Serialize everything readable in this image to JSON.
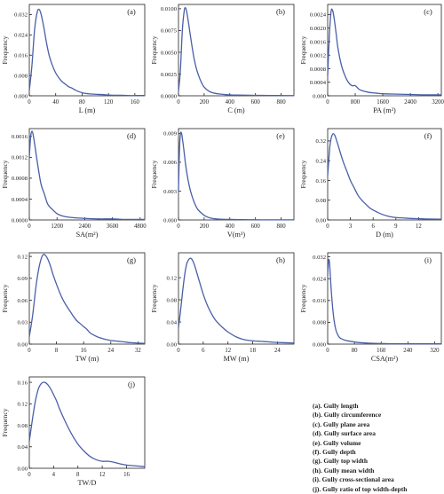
{
  "chart_data": [
    {
      "type": "line",
      "panel": "(a)",
      "xlabel": "L (m)",
      "ylabel": "Frequency",
      "xlim": [
        0,
        175
      ],
      "ylim": [
        0,
        0.036
      ],
      "xticks": [
        {
          "v": 0,
          "l": "0"
        },
        {
          "v": 40,
          "l": "40"
        },
        {
          "v": 80,
          "l": "80"
        },
        {
          "v": 120,
          "l": "120"
        },
        {
          "v": 160,
          "l": "160"
        }
      ],
      "yticks": [
        {
          "v": 0,
          "l": "0.000"
        },
        {
          "v": 0.008,
          "l": "0.008"
        },
        {
          "v": 0.016,
          "l": "0.016"
        },
        {
          "v": 0.024,
          "l": "0.024"
        },
        {
          "v": 0.032,
          "l": "0.032"
        }
      ],
      "x": [
        0,
        4,
        8,
        12,
        15,
        18,
        22,
        26,
        30,
        35,
        40,
        45,
        50,
        55,
        60,
        65,
        70,
        80,
        90,
        100,
        110,
        120,
        130,
        140,
        150,
        160,
        175
      ],
      "y": [
        0.002,
        0.012,
        0.026,
        0.033,
        0.034,
        0.032,
        0.027,
        0.021,
        0.016,
        0.012,
        0.009,
        0.007,
        0.0055,
        0.0045,
        0.0035,
        0.003,
        0.0022,
        0.0012,
        0.0008,
        0.0006,
        0.0005,
        0.0003,
        0.0002,
        0.0002,
        0.0001,
        0.0001,
        0.0001
      ]
    },
    {
      "type": "line",
      "panel": "(b)",
      "xlabel": "C (m)",
      "ylabel": "Frequency",
      "xlim": [
        0,
        900
      ],
      "ylim": [
        0,
        0.0105
      ],
      "xticks": [
        {
          "v": 0,
          "l": "0"
        },
        {
          "v": 200,
          "l": "200"
        },
        {
          "v": 400,
          "l": "400"
        },
        {
          "v": 600,
          "l": "600"
        },
        {
          "v": 800,
          "l": "800"
        }
      ],
      "yticks": [
        {
          "v": 0,
          "l": "0.0000"
        },
        {
          "v": 0.0025,
          "l": "0.0025"
        },
        {
          "v": 0.005,
          "l": "0.0050"
        },
        {
          "v": 0.0075,
          "l": "0.0075"
        },
        {
          "v": 0.01,
          "l": "0.0100"
        }
      ],
      "x": [
        0,
        15,
        30,
        45,
        55,
        65,
        80,
        100,
        120,
        140,
        160,
        180,
        200,
        240,
        280,
        320,
        400,
        500,
        600,
        700,
        800,
        900
      ],
      "y": [
        0.0005,
        0.003,
        0.0075,
        0.0098,
        0.0101,
        0.0096,
        0.0082,
        0.0062,
        0.0044,
        0.0031,
        0.0022,
        0.0015,
        0.001,
        0.0005,
        0.0003,
        0.0002,
        0.0001,
        8e-05,
        5e-05,
        4e-05,
        3e-05,
        2e-05
      ]
    },
    {
      "type": "line",
      "panel": "(c)",
      "xlabel": "PA (m²)",
      "ylabel": "Frequency",
      "xlim": [
        0,
        3300
      ],
      "ylim": [
        0,
        0.0027
      ],
      "xticks": [
        {
          "v": 0,
          "l": "0"
        },
        {
          "v": 800,
          "l": "800"
        },
        {
          "v": 1600,
          "l": "1600"
        },
        {
          "v": 2400,
          "l": "2400"
        },
        {
          "v": 3200,
          "l": "3200"
        }
      ],
      "yticks": [
        {
          "v": 0,
          "l": "0.000"
        },
        {
          "v": 0.0004,
          "l": "0.0004"
        },
        {
          "v": 0.0008,
          "l": "0.0008"
        },
        {
          "v": 0.0012,
          "l": "0.0012"
        },
        {
          "v": 0.0016,
          "l": "0.0016"
        },
        {
          "v": 0.002,
          "l": "0.0020"
        },
        {
          "v": 0.0024,
          "l": "0.0024"
        }
      ],
      "x": [
        0,
        50,
        100,
        150,
        200,
        250,
        300,
        400,
        500,
        600,
        700,
        800,
        900,
        1000,
        1200,
        1400,
        1600,
        2000,
        2400,
        2800,
        3300
      ],
      "y": [
        0.0006,
        0.0018,
        0.0025,
        0.0025,
        0.0022,
        0.0018,
        0.0014,
        0.0009,
        0.0006,
        0.0004,
        0.0003,
        0.0003,
        0.0002,
        0.00015,
        0.0001,
        8e-05,
        6e-05,
        5e-05,
        4e-05,
        3e-05,
        3e-05
      ]
    },
    {
      "type": "line",
      "panel": "(d)",
      "xlabel": "SA(m²)",
      "ylabel": "Frequency",
      "xlim": [
        0,
        5000
      ],
      "ylim": [
        0,
        0.00175
      ],
      "xticks": [
        {
          "v": 0,
          "l": "0"
        },
        {
          "v": 1200,
          "l": "1200"
        },
        {
          "v": 2400,
          "l": "2400"
        },
        {
          "v": 3600,
          "l": "3600"
        },
        {
          "v": 4800,
          "l": "4800"
        }
      ],
      "yticks": [
        {
          "v": 0,
          "l": "0.0000"
        },
        {
          "v": 0.0004,
          "l": "0.0004"
        },
        {
          "v": 0.0008,
          "l": "0.0008"
        },
        {
          "v": 0.0012,
          "l": "0.0012"
        },
        {
          "v": 0.0016,
          "l": "0.0016"
        }
      ],
      "x": [
        0,
        60,
        120,
        180,
        250,
        350,
        500,
        650,
        800,
        1000,
        1200,
        1400,
        1600,
        2000,
        2400,
        3000,
        3600,
        4200,
        5000
      ],
      "y": [
        0.0012,
        0.0016,
        0.0017,
        0.0016,
        0.0014,
        0.0011,
        0.0007,
        0.0005,
        0.0003,
        0.0002,
        0.00012,
        8e-05,
        6e-05,
        4e-05,
        3e-05,
        2e-05,
        2e-05,
        1e-05,
        1e-05
      ]
    },
    {
      "type": "line",
      "panel": "(e)",
      "xlabel": "V(m³)",
      "ylabel": "Frequency",
      "xlim": [
        0,
        900
      ],
      "ylim": [
        0,
        0.0095
      ],
      "xticks": [
        {
          "v": 0,
          "l": "0"
        },
        {
          "v": 200,
          "l": "200"
        },
        {
          "v": 400,
          "l": "400"
        },
        {
          "v": 600,
          "l": "600"
        },
        {
          "v": 800,
          "l": "800"
        }
      ],
      "yticks": [
        {
          "v": 0,
          "l": "0.000"
        },
        {
          "v": 0.003,
          "l": "0.003"
        },
        {
          "v": 0.006,
          "l": "0.006"
        },
        {
          "v": 0.009,
          "l": "0.009"
        }
      ],
      "x": [
        0,
        8,
        16,
        24,
        30,
        40,
        55,
        70,
        90,
        110,
        130,
        150,
        180,
        210,
        250,
        300,
        400,
        500,
        600,
        700,
        800,
        900
      ],
      "y": [
        0.003,
        0.0075,
        0.009,
        0.009,
        0.0085,
        0.0075,
        0.0058,
        0.0045,
        0.0032,
        0.0023,
        0.0016,
        0.0011,
        0.0007,
        0.0004,
        0.0002,
        0.0001,
        5e-05,
        3e-05,
        2e-05,
        1e-05,
        1e-05,
        1e-05
      ]
    },
    {
      "type": "line",
      "panel": "(f)",
      "xlabel": "D (m)",
      "ylabel": "Frequency",
      "xlim": [
        0,
        15
      ],
      "ylim": [
        0,
        0.37
      ],
      "xticks": [
        {
          "v": 0,
          "l": "0"
        },
        {
          "v": 3,
          "l": "3"
        },
        {
          "v": 6,
          "l": "6"
        },
        {
          "v": 9,
          "l": "9"
        },
        {
          "v": 12,
          "l": "12"
        }
      ],
      "yticks": [
        {
          "v": 0,
          "l": "0.00"
        },
        {
          "v": 0.08,
          "l": "0.08"
        },
        {
          "v": 0.16,
          "l": "0.16"
        },
        {
          "v": 0.24,
          "l": "0.24"
        },
        {
          "v": 0.32,
          "l": "0.32"
        }
      ],
      "x": [
        0,
        0.3,
        0.6,
        0.9,
        1.2,
        1.5,
        2,
        2.5,
        3,
        3.5,
        4,
        4.5,
        5,
        5.5,
        6,
        7,
        8,
        9,
        10,
        11,
        12,
        13,
        15
      ],
      "y": [
        0.18,
        0.3,
        0.345,
        0.345,
        0.32,
        0.29,
        0.24,
        0.2,
        0.16,
        0.13,
        0.1,
        0.08,
        0.065,
        0.05,
        0.04,
        0.025,
        0.015,
        0.01,
        0.008,
        0.006,
        0.005,
        0.004,
        0.003
      ]
    },
    {
      "type": "line",
      "panel": "(g)",
      "xlabel": "TW (m)",
      "ylabel": "Frequency",
      "xlim": [
        0,
        34
      ],
      "ylim": [
        0,
        0.125
      ],
      "xticks": [
        {
          "v": 0,
          "l": "0"
        },
        {
          "v": 8,
          "l": "8"
        },
        {
          "v": 16,
          "l": "16"
        },
        {
          "v": 24,
          "l": "24"
        },
        {
          "v": 32,
          "l": "32"
        }
      ],
      "yticks": [
        {
          "v": 0,
          "l": "0.00"
        },
        {
          "v": 0.03,
          "l": "0.03"
        },
        {
          "v": 0.06,
          "l": "0.06"
        },
        {
          "v": 0.09,
          "l": "0.09"
        },
        {
          "v": 0.12,
          "l": "0.12"
        }
      ],
      "x": [
        0,
        1,
        2,
        3,
        4,
        5,
        6,
        7,
        8,
        9,
        10,
        11,
        12,
        13,
        14,
        15,
        16,
        17,
        18,
        20,
        22,
        24,
        26,
        28,
        30,
        34
      ],
      "y": [
        0.01,
        0.04,
        0.08,
        0.108,
        0.122,
        0.12,
        0.11,
        0.095,
        0.082,
        0.07,
        0.06,
        0.052,
        0.045,
        0.038,
        0.032,
        0.028,
        0.024,
        0.02,
        0.015,
        0.01,
        0.007,
        0.005,
        0.004,
        0.003,
        0.002,
        0.001
      ]
    },
    {
      "type": "line",
      "panel": "(h)",
      "xlabel": "MW (m)",
      "ylabel": "Frequency",
      "xlim": [
        0,
        28
      ],
      "ylim": [
        0,
        0.165
      ],
      "xticks": [
        {
          "v": 0,
          "l": "0"
        },
        {
          "v": 6,
          "l": "6"
        },
        {
          "v": 12,
          "l": "12"
        },
        {
          "v": 18,
          "l": "18"
        },
        {
          "v": 24,
          "l": "24"
        }
      ],
      "yticks": [
        {
          "v": 0,
          "l": "0.00"
        },
        {
          "v": 0.04,
          "l": "0.04"
        },
        {
          "v": 0.08,
          "l": "0.08"
        },
        {
          "v": 0.12,
          "l": "0.12"
        }
      ],
      "x": [
        0,
        0.5,
        1,
        1.5,
        2,
        2.5,
        3,
        3.5,
        4,
        5,
        6,
        7,
        8,
        9,
        10,
        11,
        12,
        14,
        16,
        18,
        20,
        22,
        24,
        28
      ],
      "y": [
        0.03,
        0.06,
        0.095,
        0.125,
        0.145,
        0.153,
        0.155,
        0.15,
        0.14,
        0.115,
        0.09,
        0.07,
        0.055,
        0.043,
        0.035,
        0.028,
        0.022,
        0.013,
        0.008,
        0.006,
        0.005,
        0.004,
        0.003,
        0.002
      ]
    },
    {
      "type": "line",
      "panel": "(i)",
      "xlabel": "CSA(m²)",
      "ylabel": "Frequency",
      "xlim": [
        0,
        340
      ],
      "ylim": [
        0,
        0.0335
      ],
      "xticks": [
        {
          "v": 0,
          "l": "0"
        },
        {
          "v": 80,
          "l": "80"
        },
        {
          "v": 160,
          "l": "160"
        },
        {
          "v": 240,
          "l": "240"
        },
        {
          "v": 320,
          "l": "320"
        }
      ],
      "yticks": [
        {
          "v": 0,
          "l": "0.000"
        },
        {
          "v": 0.008,
          "l": "0.008"
        },
        {
          "v": 0.016,
          "l": "0.016"
        },
        {
          "v": 0.024,
          "l": "0.024"
        },
        {
          "v": 0.032,
          "l": "0.032"
        }
      ],
      "x": [
        0,
        2,
        4,
        6,
        8,
        10,
        13,
        16,
        20,
        25,
        30,
        35,
        40,
        50,
        60,
        80,
        100,
        130,
        160,
        200,
        240,
        280,
        340
      ],
      "y": [
        0.025,
        0.03,
        0.031,
        0.029,
        0.025,
        0.021,
        0.016,
        0.012,
        0.008,
        0.005,
        0.0035,
        0.0025,
        0.002,
        0.0015,
        0.0012,
        0.0008,
        0.0005,
        0.0003,
        0.0002,
        0.0001,
        0.0001,
        0.0001,
        0.0001
      ]
    },
    {
      "type": "line",
      "panel": "(j)",
      "xlabel": "TW/D",
      "ylabel": "Frequency",
      "xlim": [
        0,
        19
      ],
      "ylim": [
        0,
        0.17
      ],
      "xticks": [
        {
          "v": 0,
          "l": "0"
        },
        {
          "v": 4,
          "l": "4"
        },
        {
          "v": 8,
          "l": "8"
        },
        {
          "v": 12,
          "l": "12"
        },
        {
          "v": 16,
          "l": "16"
        }
      ],
      "yticks": [
        {
          "v": 0,
          "l": "0.00"
        },
        {
          "v": 0.04,
          "l": "0.04"
        },
        {
          "v": 0.08,
          "l": "0.08"
        },
        {
          "v": 0.12,
          "l": "0.12"
        },
        {
          "v": 0.16,
          "l": "0.16"
        }
      ],
      "x": [
        0,
        0.5,
        1,
        1.5,
        2,
        2.5,
        3,
        3.5,
        4,
        4.5,
        5,
        6,
        7,
        8,
        9,
        10,
        11,
        12,
        13,
        14,
        15,
        16,
        17,
        19
      ],
      "y": [
        0.05,
        0.09,
        0.125,
        0.148,
        0.158,
        0.16,
        0.156,
        0.148,
        0.137,
        0.125,
        0.11,
        0.085,
        0.063,
        0.045,
        0.032,
        0.022,
        0.016,
        0.013,
        0.013,
        0.011,
        0.008,
        0.006,
        0.005,
        0.003
      ]
    }
  ],
  "legend": [
    "(a). Gully length",
    "(b). Gully circumference",
    "(c). Gully plane area",
    "(d). Gully surface area",
    "(e). Gully volume",
    "(f). Gully depth",
    "(g). Gully top width",
    "(h). Gully mean width",
    "(i). Gully cross-sectional area",
    "(j). Gully ratio of top width-depth"
  ],
  "colors": {
    "line": "#4a5fa8",
    "axis": "#222222",
    "text": "#222222"
  }
}
